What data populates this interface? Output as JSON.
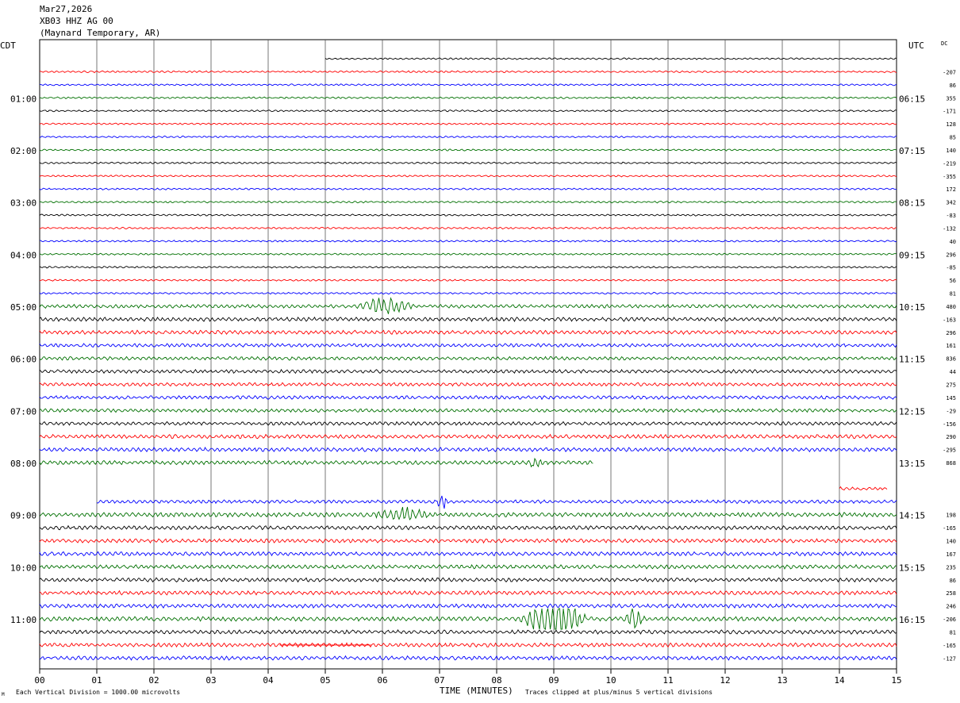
{
  "header": {
    "date": "Mar27,2026",
    "station": "XB03 HHZ AG 00",
    "location": "(Maynard Temporary, AR)"
  },
  "labels": {
    "left_timezone": "CDT",
    "right_timezone": "UTC",
    "dc_label": "DC",
    "xaxis_title": "TIME (MINUTES)",
    "scale_note": "Each Vertical Division = 1000.00 microvolts",
    "clip_note": "Traces clipped at plus/minus 5 vertical divisions"
  },
  "chart_data": {
    "type": "line",
    "title": "Helicorder XB03 HHZ AG 00",
    "xlabel": "TIME (MINUTES)",
    "xlim": [
      0,
      15
    ],
    "x_ticks": [
      "00",
      "01",
      "02",
      "03",
      "04",
      "05",
      "06",
      "07",
      "08",
      "09",
      "10",
      "11",
      "12",
      "13",
      "14",
      "15"
    ],
    "row_minutes": 15,
    "row_count": 48,
    "left_hour_labels": [
      {
        "row": 3,
        "text": "01:00"
      },
      {
        "row": 7,
        "text": "02:00"
      },
      {
        "row": 11,
        "text": "03:00"
      },
      {
        "row": 15,
        "text": "04:00"
      },
      {
        "row": 19,
        "text": "05:00"
      },
      {
        "row": 23,
        "text": "06:00"
      },
      {
        "row": 27,
        "text": "07:00"
      },
      {
        "row": 31,
        "text": "08:00"
      },
      {
        "row": 35,
        "text": "09:00"
      },
      {
        "row": 39,
        "text": "10:00"
      },
      {
        "row": 43,
        "text": "11:00"
      }
    ],
    "right_hour_labels": [
      {
        "row": 3,
        "text": "06:15"
      },
      {
        "row": 7,
        "text": "07:15"
      },
      {
        "row": 11,
        "text": "08:15"
      },
      {
        "row": 15,
        "text": "09:15"
      },
      {
        "row": 19,
        "text": "10:15"
      },
      {
        "row": 23,
        "text": "11:15"
      },
      {
        "row": 27,
        "text": "12:15"
      },
      {
        "row": 31,
        "text": "13:15"
      },
      {
        "row": 35,
        "text": "14:15"
      },
      {
        "row": 39,
        "text": "15:15"
      },
      {
        "row": 43,
        "text": "16:15"
      }
    ],
    "dc_values": [
      {
        "row": 1,
        "text": "-207"
      },
      {
        "row": 2,
        "text": "86"
      },
      {
        "row": 3,
        "text": "355"
      },
      {
        "row": 4,
        "text": "-171"
      },
      {
        "row": 5,
        "text": "128"
      },
      {
        "row": 6,
        "text": "85"
      },
      {
        "row": 7,
        "text": "140"
      },
      {
        "row": 8,
        "text": "-219"
      },
      {
        "row": 9,
        "text": "-355"
      },
      {
        "row": 10,
        "text": "172"
      },
      {
        "row": 11,
        "text": "342"
      },
      {
        "row": 12,
        "text": "-83"
      },
      {
        "row": 13,
        "text": "-132"
      },
      {
        "row": 14,
        "text": "40"
      },
      {
        "row": 15,
        "text": "296"
      },
      {
        "row": 16,
        "text": "-85"
      },
      {
        "row": 17,
        "text": "56"
      },
      {
        "row": 18,
        "text": "81"
      },
      {
        "row": 19,
        "text": "480"
      },
      {
        "row": 20,
        "text": "-163"
      },
      {
        "row": 21,
        "text": "296"
      },
      {
        "row": 22,
        "text": "161"
      },
      {
        "row": 23,
        "text": "836"
      },
      {
        "row": 24,
        "text": "44"
      },
      {
        "row": 25,
        "text": "275"
      },
      {
        "row": 26,
        "text": "145"
      },
      {
        "row": 27,
        "text": "-29"
      },
      {
        "row": 28,
        "text": "-156"
      },
      {
        "row": 29,
        "text": "290"
      },
      {
        "row": 30,
        "text": "-295"
      },
      {
        "row": 31,
        "text": "868"
      },
      {
        "row": 35,
        "text": "198"
      },
      {
        "row": 36,
        "text": "-165"
      },
      {
        "row": 37,
        "text": "140"
      },
      {
        "row": 38,
        "text": "167"
      },
      {
        "row": 39,
        "text": "235"
      },
      {
        "row": 40,
        "text": "86"
      },
      {
        "row": 41,
        "text": "258"
      },
      {
        "row": 42,
        "text": "246"
      },
      {
        "row": 43,
        "text": "-206"
      },
      {
        "row": 44,
        "text": "81"
      },
      {
        "row": 45,
        "text": "-165"
      },
      {
        "row": 46,
        "text": "-127"
      }
    ],
    "trace_colors": [
      "#000000",
      "#ff0000",
      "#0000ff",
      "#007000"
    ],
    "trace_segments": [
      {
        "row": 0,
        "start_min": 5.0,
        "end_min": 15,
        "amp": 0.8
      },
      {
        "row": 1,
        "start_min": 0,
        "end_min": 15,
        "amp": 0.8
      },
      {
        "row": 2,
        "start_min": 0,
        "end_min": 15,
        "amp": 0.8
      },
      {
        "row": 3,
        "start_min": 0,
        "end_min": 15,
        "amp": 0.8
      },
      {
        "row": 4,
        "start_min": 0,
        "end_min": 15,
        "amp": 0.8
      },
      {
        "row": 5,
        "start_min": 0,
        "end_min": 15,
        "amp": 0.8
      },
      {
        "row": 6,
        "start_min": 0,
        "end_min": 15,
        "amp": 0.8
      },
      {
        "row": 7,
        "start_min": 0,
        "end_min": 15,
        "amp": 0.8
      },
      {
        "row": 8,
        "start_min": 0,
        "end_min": 15,
        "amp": 0.8
      },
      {
        "row": 9,
        "start_min": 0,
        "end_min": 15,
        "amp": 0.8
      },
      {
        "row": 10,
        "start_min": 0,
        "end_min": 15,
        "amp": 0.8
      },
      {
        "row": 11,
        "start_min": 0,
        "end_min": 15,
        "amp": 0.8
      },
      {
        "row": 12,
        "start_min": 0,
        "end_min": 15,
        "amp": 0.8
      },
      {
        "row": 13,
        "start_min": 0,
        "end_min": 15,
        "amp": 0.8
      },
      {
        "row": 14,
        "start_min": 0,
        "end_min": 15,
        "amp": 0.8
      },
      {
        "row": 15,
        "start_min": 0,
        "end_min": 15,
        "amp": 0.8
      },
      {
        "row": 16,
        "start_min": 0,
        "end_min": 15,
        "amp": 0.8
      },
      {
        "row": 17,
        "start_min": 0,
        "end_min": 15,
        "amp": 0.8
      },
      {
        "row": 18,
        "start_min": 0,
        "end_min": 15,
        "amp": 0.8
      },
      {
        "row": 19,
        "start_min": 0,
        "end_min": 15,
        "amp": 1.6
      },
      {
        "row": 20,
        "start_min": 0,
        "end_min": 15,
        "amp": 1.8
      },
      {
        "row": 21,
        "start_min": 0,
        "end_min": 15,
        "amp": 1.8
      },
      {
        "row": 22,
        "start_min": 0,
        "end_min": 15,
        "amp": 1.6
      },
      {
        "row": 23,
        "start_min": 0,
        "end_min": 15,
        "amp": 1.6
      },
      {
        "row": 24,
        "start_min": 0,
        "end_min": 15,
        "amp": 1.6
      },
      {
        "row": 25,
        "start_min": 0,
        "end_min": 15,
        "amp": 1.6
      },
      {
        "row": 26,
        "start_min": 0,
        "end_min": 15,
        "amp": 1.6
      },
      {
        "row": 27,
        "start_min": 0,
        "end_min": 15,
        "amp": 1.6
      },
      {
        "row": 28,
        "start_min": 0,
        "end_min": 15,
        "amp": 1.6
      },
      {
        "row": 29,
        "start_min": 0,
        "end_min": 15,
        "amp": 1.8
      },
      {
        "row": 30,
        "start_min": 0,
        "end_min": 15,
        "amp": 1.8
      },
      {
        "row": 31,
        "start_min": 0,
        "end_min": 9.7,
        "amp": 1.8
      },
      {
        "row": 34,
        "start_min": 1.0,
        "end_min": 15,
        "amp": 1.6
      },
      {
        "row": 33,
        "start_min": 14.0,
        "end_min": 14.85,
        "amp": 1.6
      },
      {
        "row": 35,
        "start_min": 0,
        "end_min": 15,
        "amp": 2.0
      },
      {
        "row": 36,
        "start_min": 0,
        "end_min": 15,
        "amp": 1.8
      },
      {
        "row": 37,
        "start_min": 0,
        "end_min": 15,
        "amp": 1.8
      },
      {
        "row": 38,
        "start_min": 0,
        "end_min": 15,
        "amp": 1.8
      },
      {
        "row": 39,
        "start_min": 0,
        "end_min": 15,
        "amp": 1.8
      },
      {
        "row": 40,
        "start_min": 0,
        "end_min": 15,
        "amp": 1.8
      },
      {
        "row": 41,
        "start_min": 0,
        "end_min": 15,
        "amp": 1.8
      },
      {
        "row": 42,
        "start_min": 0,
        "end_min": 15,
        "amp": 1.8
      },
      {
        "row": 43,
        "start_min": 0,
        "end_min": 15,
        "amp": 2.0
      },
      {
        "row": 44,
        "start_min": 0,
        "end_min": 15,
        "amp": 1.8
      },
      {
        "row": 45,
        "start_min": 0,
        "end_min": 15,
        "amp": 1.8
      },
      {
        "row": 46,
        "start_min": 0,
        "end_min": 15,
        "amp": 1.8
      }
    ],
    "flat_segments": [
      {
        "row": 45,
        "start_min": 4.2,
        "end_min": 5.8
      }
    ],
    "events": [
      {
        "row": 19,
        "start_min": 5.5,
        "end_min": 6.6,
        "amp": 6
      },
      {
        "row": 43,
        "start_min": 8.4,
        "end_min": 9.6,
        "amp": 14
      },
      {
        "row": 43,
        "start_min": 10.2,
        "end_min": 10.6,
        "amp": 6
      },
      {
        "row": 34,
        "start_min": 6.95,
        "end_min": 7.15,
        "amp": 7
      },
      {
        "row": 31,
        "start_min": 8.5,
        "end_min": 8.8,
        "amp": 4
      },
      {
        "row": 35,
        "start_min": 5.8,
        "end_min": 6.9,
        "amp": 4
      }
    ]
  }
}
